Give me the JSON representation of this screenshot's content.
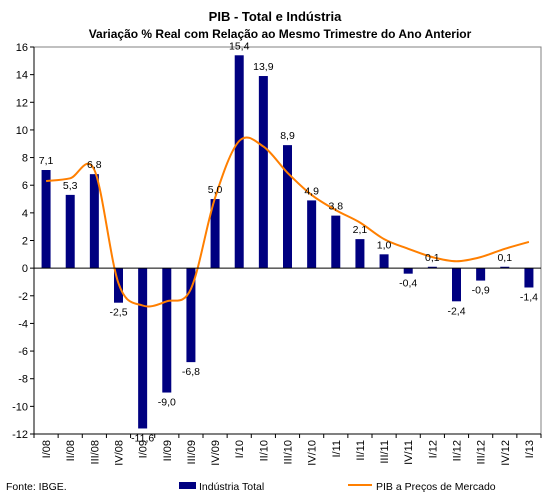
{
  "chart_data": {
    "type": "bar",
    "title": "PIB - Total e Indústria",
    "subtitle": "Variação % Real com Relação ao Mesmo Trimestre do Ano Anterior",
    "categories": [
      "I/08",
      "II/08",
      "III/08",
      "IV/08",
      "I/09",
      "II/09",
      "III/09",
      "IV/09",
      "I/10",
      "II/10",
      "III/10",
      "IV/10",
      "I/11",
      "II/11",
      "III/11",
      "IV/11",
      "I/12",
      "II/12",
      "III/12",
      "IV/12",
      "I/13"
    ],
    "series": [
      {
        "name": "Indústria Total",
        "type": "bar",
        "color": "#000080",
        "values": [
          7.1,
          5.3,
          6.8,
          -2.5,
          -11.6,
          -9.0,
          -6.8,
          5.0,
          15.4,
          13.9,
          8.9,
          4.9,
          3.8,
          2.1,
          1.0,
          -0.4,
          0.1,
          -2.4,
          -0.9,
          0.1,
          -1.4
        ],
        "labels": [
          "7,1",
          "5,3",
          "6,8",
          "-2,5",
          "-11,6",
          "-9,0",
          "-6,8",
          "5,0",
          "15,4",
          "13,9",
          "8,9",
          "4,9",
          "3,8",
          "2,1",
          "1,0",
          "-0,4",
          "0,1",
          "-2,4",
          "-0,9",
          "0,1",
          "-1,4"
        ],
        "label_shown": [
          true,
          true,
          true,
          true,
          true,
          true,
          true,
          true,
          true,
          true,
          true,
          true,
          true,
          true,
          true,
          true,
          true,
          true,
          true,
          true,
          true
        ]
      },
      {
        "name": "PIB a Preços de Mercado",
        "type": "line",
        "smooth": true,
        "color": "#FF7F00",
        "values": [
          6.3,
          6.5,
          7.1,
          -1.1,
          -2.7,
          -2.4,
          -1.5,
          5.1,
          9.2,
          8.8,
          6.9,
          5.3,
          4.2,
          3.3,
          2.1,
          1.4,
          0.8,
          0.5,
          0.8,
          1.4,
          1.9
        ]
      }
    ],
    "ylim": [
      -12,
      16
    ],
    "yticks": [
      -12,
      -10,
      -8,
      -6,
      -4,
      -2,
      0,
      2,
      4,
      6,
      8,
      10,
      12,
      14,
      16
    ],
    "legend_position": "bottom",
    "xlabel": "",
    "ylabel": ""
  },
  "footer": {
    "source": "Fonte: IBGE."
  }
}
